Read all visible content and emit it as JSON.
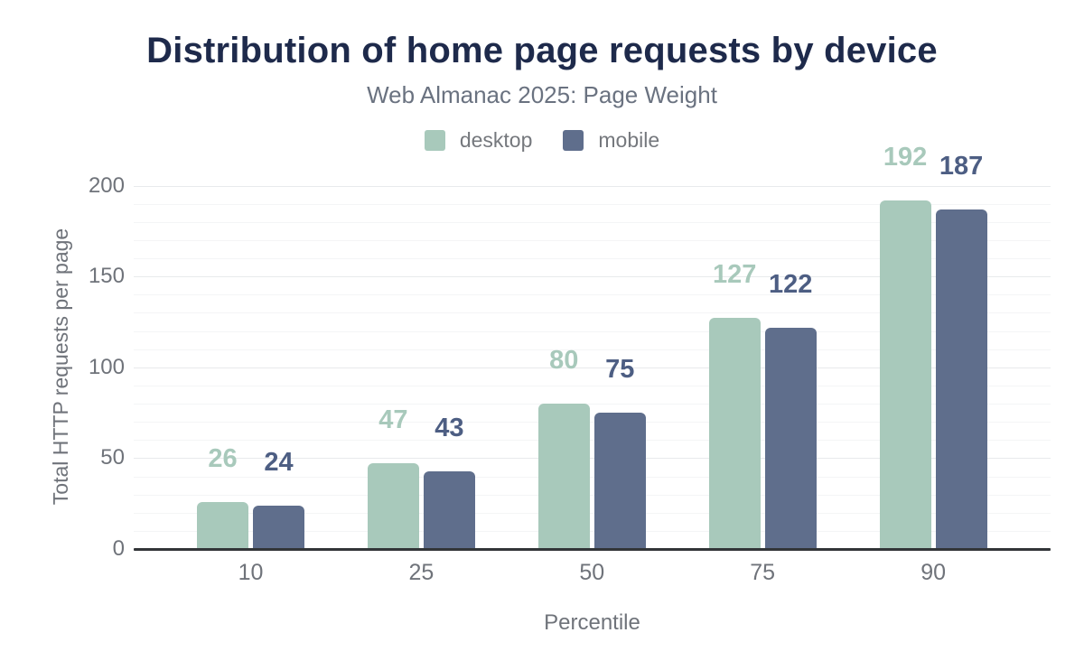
{
  "title": "Distribution of home page requests by device",
  "subtitle": "Web Almanac 2025: Page Weight",
  "legend": {
    "desktop_label": "desktop",
    "mobile_label": "mobile"
  },
  "colors": {
    "title": "#1e2a4b",
    "subtitle": "#6a7280",
    "axis_text": "#6f737a",
    "axis_line": "#323538",
    "desktop": "#a8c9bb",
    "mobile": "#5f6e8c",
    "desktop_value_label": "#a8c9bb",
    "mobile_value_label": "#4d5e83"
  },
  "chart_data": {
    "type": "bar",
    "title": "Distribution of home page requests by device",
    "subtitle": "Web Almanac 2025: Page Weight",
    "categories": [
      "10",
      "25",
      "50",
      "75",
      "90"
    ],
    "series": [
      {
        "name": "desktop",
        "color": "#a8c9bb",
        "label_color": "#a8c9bb",
        "values": [
          26,
          47,
          80,
          127,
          192
        ]
      },
      {
        "name": "mobile",
        "color": "#5f6e8c",
        "label_color": "#4d5e83",
        "values": [
          24,
          43,
          75,
          122,
          187
        ]
      }
    ],
    "xlabel": "Percentile",
    "ylabel": "Total HTTP requests per page",
    "ylim": [
      0,
      200
    ],
    "yticks": [
      0,
      50,
      100,
      150,
      200
    ],
    "grid": "horizontal, minor every 10, major every 50",
    "legend_position": "top",
    "value_labels": "above bars, colored per series"
  }
}
